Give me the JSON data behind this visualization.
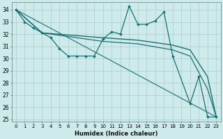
{
  "title": "",
  "xlabel": "Humidex (Indice chaleur)",
  "ylabel": "",
  "bg_color": "#ceeaea",
  "grid_color": "#aacccc",
  "line_color": "#1a7070",
  "xlim": [
    -0.5,
    23.5
  ],
  "ylim": [
    24.8,
    34.6
  ],
  "yticks": [
    25,
    26,
    27,
    28,
    29,
    30,
    31,
    32,
    33,
    34
  ],
  "xticks": [
    0,
    1,
    2,
    3,
    4,
    5,
    6,
    7,
    8,
    9,
    10,
    11,
    12,
    13,
    14,
    15,
    16,
    17,
    18,
    19,
    20,
    21,
    22,
    23
  ],
  "series": [
    {
      "x": [
        0,
        1,
        2,
        3,
        4,
        5,
        6,
        7,
        8,
        9,
        10,
        11,
        12,
        13,
        14,
        15,
        16,
        17,
        18,
        20,
        21,
        22,
        23
      ],
      "y": [
        34,
        33,
        32.5,
        32.1,
        31.7,
        30.8,
        30.2,
        30.2,
        30.2,
        30.2,
        31.6,
        32.2,
        32.0,
        34.3,
        32.8,
        32.8,
        33.1,
        33.8,
        30.2,
        26.3,
        28.5,
        25.2,
        25.2
      ],
      "marker": "D",
      "markersize": 2.0,
      "linewidth": 0.9
    },
    {
      "x": [
        0,
        3,
        10,
        14,
        18,
        20,
        22,
        23
      ],
      "y": [
        34,
        32.1,
        31.7,
        31.5,
        31.1,
        30.7,
        28.5,
        25.2
      ],
      "marker": null,
      "markersize": 0,
      "linewidth": 1.0
    },
    {
      "x": [
        0,
        3,
        10,
        14,
        18,
        20,
        22,
        23
      ],
      "y": [
        34,
        32.1,
        31.4,
        31.2,
        30.7,
        30.2,
        27.5,
        25.2
      ],
      "marker": null,
      "markersize": 0,
      "linewidth": 0.9
    },
    {
      "x": [
        0,
        23
      ],
      "y": [
        34,
        25.2
      ],
      "marker": null,
      "markersize": 0,
      "linewidth": 0.8
    }
  ]
}
